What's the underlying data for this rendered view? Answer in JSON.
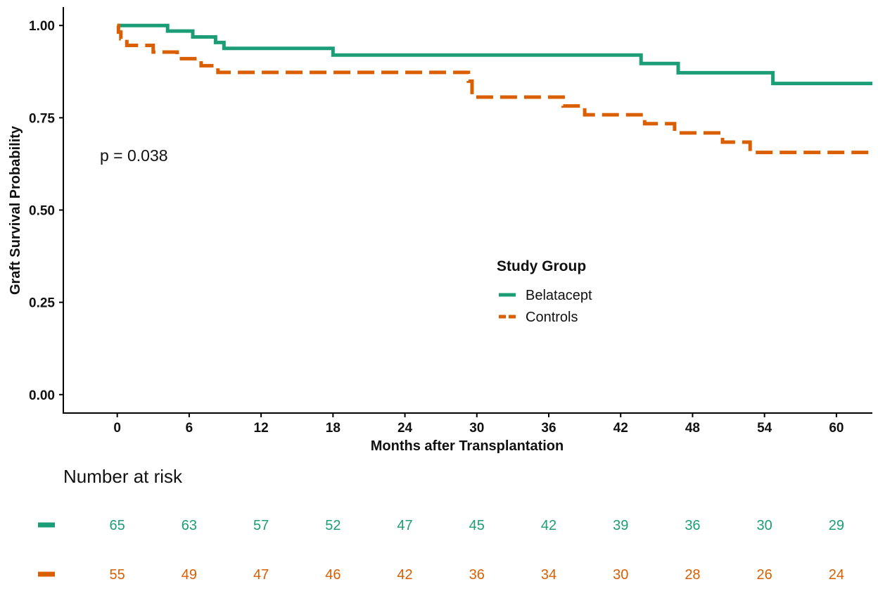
{
  "chart_data": {
    "type": "line",
    "subtype": "kaplan-meier-step",
    "xlabel": "Months after Transplantation",
    "ylabel": "Graft Survival Probability",
    "xlim": [
      -4.5,
      63
    ],
    "ylim": [
      -0.05,
      1.05
    ],
    "xticks": [
      "0",
      "6",
      "12",
      "18",
      "24",
      "30",
      "36",
      "42",
      "48",
      "54",
      "60"
    ],
    "yticks": [
      "0.00",
      "0.25",
      "0.50",
      "0.75",
      "1.00"
    ],
    "grid": false,
    "annotation": "p = 0.038",
    "legend": {
      "title": "Study Group",
      "position": "center-right"
    },
    "series": [
      {
        "name": "Belatacept",
        "color": "#1b9e77",
        "dash": "solid",
        "steps": [
          [
            0,
            1.0
          ],
          [
            4.2,
            0.985
          ],
          [
            6.3,
            0.969
          ],
          [
            8.2,
            0.954
          ],
          [
            8.9,
            0.938
          ],
          [
            18.0,
            0.92
          ],
          [
            43.7,
            0.897
          ],
          [
            46.8,
            0.872
          ],
          [
            54.7,
            0.843
          ],
          [
            63.0,
            0.843
          ]
        ]
      },
      {
        "name": "Controls",
        "color": "#d95f02",
        "dash": "dashed",
        "steps": [
          [
            0,
            1.0
          ],
          [
            0.1,
            0.982
          ],
          [
            0.3,
            0.964
          ],
          [
            0.8,
            0.946
          ],
          [
            3.0,
            0.928
          ],
          [
            5.0,
            0.91
          ],
          [
            7.0,
            0.891
          ],
          [
            8.4,
            0.873
          ],
          [
            29.3,
            0.849
          ],
          [
            29.6,
            0.806
          ],
          [
            37.2,
            0.782
          ],
          [
            39.0,
            0.758
          ],
          [
            44.0,
            0.734
          ],
          [
            46.5,
            0.709
          ],
          [
            50.5,
            0.684
          ],
          [
            52.8,
            0.656
          ],
          [
            63.0,
            0.656
          ]
        ]
      }
    ],
    "risk_table": {
      "title": "Number at risk",
      "times": [
        0,
        6,
        12,
        18,
        24,
        30,
        36,
        42,
        48,
        54,
        60
      ],
      "rows": [
        {
          "group": "Belatacept",
          "color": "#1b9e77",
          "values": [
            "65",
            "63",
            "57",
            "52",
            "47",
            "45",
            "42",
            "39",
            "36",
            "30",
            "29"
          ]
        },
        {
          "group": "Controls",
          "color": "#d95f02",
          "values": [
            "55",
            "49",
            "47",
            "46",
            "42",
            "36",
            "34",
            "30",
            "28",
            "26",
            "24"
          ]
        }
      ]
    }
  }
}
